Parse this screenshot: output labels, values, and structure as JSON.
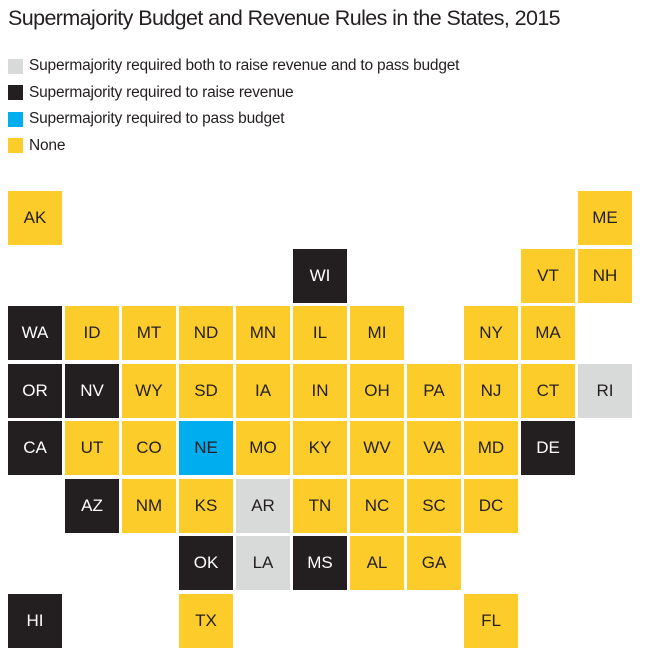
{
  "title": "Supermajority Budget and Revenue Rules in the States, 2015",
  "colors": {
    "both": "#d8d9d9",
    "revenue": "#231f20",
    "budget": "#00aeef",
    "none": "#fccd2a"
  },
  "legend": [
    {
      "key": "both",
      "label": "Supermajority required both to raise revenue and to pass budget"
    },
    {
      "key": "revenue",
      "label": "Supermajority required to raise revenue"
    },
    {
      "key": "budget",
      "label": "Supermajority required to pass budget"
    },
    {
      "key": "none",
      "label": "None"
    }
  ],
  "states": [
    {
      "abbr": "AK",
      "cat": "none",
      "col": 0,
      "row": 0
    },
    {
      "abbr": "ME",
      "cat": "none",
      "col": 10,
      "row": 0
    },
    {
      "abbr": "WI",
      "cat": "revenue",
      "col": 5,
      "row": 1
    },
    {
      "abbr": "VT",
      "cat": "none",
      "col": 9,
      "row": 1
    },
    {
      "abbr": "NH",
      "cat": "none",
      "col": 10,
      "row": 1
    },
    {
      "abbr": "WA",
      "cat": "revenue",
      "col": 0,
      "row": 2
    },
    {
      "abbr": "ID",
      "cat": "none",
      "col": 1,
      "row": 2
    },
    {
      "abbr": "MT",
      "cat": "none",
      "col": 2,
      "row": 2
    },
    {
      "abbr": "ND",
      "cat": "none",
      "col": 3,
      "row": 2
    },
    {
      "abbr": "MN",
      "cat": "none",
      "col": 4,
      "row": 2
    },
    {
      "abbr": "IL",
      "cat": "none",
      "col": 5,
      "row": 2
    },
    {
      "abbr": "MI",
      "cat": "none",
      "col": 6,
      "row": 2
    },
    {
      "abbr": "NY",
      "cat": "none",
      "col": 8,
      "row": 2
    },
    {
      "abbr": "MA",
      "cat": "none",
      "col": 9,
      "row": 2
    },
    {
      "abbr": "OR",
      "cat": "revenue",
      "col": 0,
      "row": 3
    },
    {
      "abbr": "NV",
      "cat": "revenue",
      "col": 1,
      "row": 3
    },
    {
      "abbr": "WY",
      "cat": "none",
      "col": 2,
      "row": 3
    },
    {
      "abbr": "SD",
      "cat": "none",
      "col": 3,
      "row": 3
    },
    {
      "abbr": "IA",
      "cat": "none",
      "col": 4,
      "row": 3
    },
    {
      "abbr": "IN",
      "cat": "none",
      "col": 5,
      "row": 3
    },
    {
      "abbr": "OH",
      "cat": "none",
      "col": 6,
      "row": 3
    },
    {
      "abbr": "PA",
      "cat": "none",
      "col": 7,
      "row": 3
    },
    {
      "abbr": "NJ",
      "cat": "none",
      "col": 8,
      "row": 3
    },
    {
      "abbr": "CT",
      "cat": "none",
      "col": 9,
      "row": 3
    },
    {
      "abbr": "RI",
      "cat": "both",
      "col": 10,
      "row": 3
    },
    {
      "abbr": "CA",
      "cat": "revenue",
      "col": 0,
      "row": 4
    },
    {
      "abbr": "UT",
      "cat": "none",
      "col": 1,
      "row": 4
    },
    {
      "abbr": "CO",
      "cat": "none",
      "col": 2,
      "row": 4
    },
    {
      "abbr": "NE",
      "cat": "budget",
      "col": 3,
      "row": 4
    },
    {
      "abbr": "MO",
      "cat": "none",
      "col": 4,
      "row": 4
    },
    {
      "abbr": "KY",
      "cat": "none",
      "col": 5,
      "row": 4
    },
    {
      "abbr": "WV",
      "cat": "none",
      "col": 6,
      "row": 4
    },
    {
      "abbr": "VA",
      "cat": "none",
      "col": 7,
      "row": 4
    },
    {
      "abbr": "MD",
      "cat": "none",
      "col": 8,
      "row": 4
    },
    {
      "abbr": "DE",
      "cat": "revenue",
      "col": 9,
      "row": 4
    },
    {
      "abbr": "AZ",
      "cat": "revenue",
      "col": 1,
      "row": 5
    },
    {
      "abbr": "NM",
      "cat": "none",
      "col": 2,
      "row": 5
    },
    {
      "abbr": "KS",
      "cat": "none",
      "col": 3,
      "row": 5
    },
    {
      "abbr": "AR",
      "cat": "both",
      "col": 4,
      "row": 5
    },
    {
      "abbr": "TN",
      "cat": "none",
      "col": 5,
      "row": 5
    },
    {
      "abbr": "NC",
      "cat": "none",
      "col": 6,
      "row": 5
    },
    {
      "abbr": "SC",
      "cat": "none",
      "col": 7,
      "row": 5
    },
    {
      "abbr": "DC",
      "cat": "none",
      "col": 8,
      "row": 5
    },
    {
      "abbr": "OK",
      "cat": "revenue",
      "col": 3,
      "row": 6
    },
    {
      "abbr": "LA",
      "cat": "both",
      "col": 4,
      "row": 6
    },
    {
      "abbr": "MS",
      "cat": "revenue",
      "col": 5,
      "row": 6
    },
    {
      "abbr": "AL",
      "cat": "none",
      "col": 6,
      "row": 6
    },
    {
      "abbr": "GA",
      "cat": "none",
      "col": 7,
      "row": 6
    },
    {
      "abbr": "HI",
      "cat": "revenue",
      "col": 0,
      "row": 7
    },
    {
      "abbr": "TX",
      "cat": "none",
      "col": 3,
      "row": 7
    },
    {
      "abbr": "FL",
      "cat": "none",
      "col": 8,
      "row": 7
    }
  ]
}
